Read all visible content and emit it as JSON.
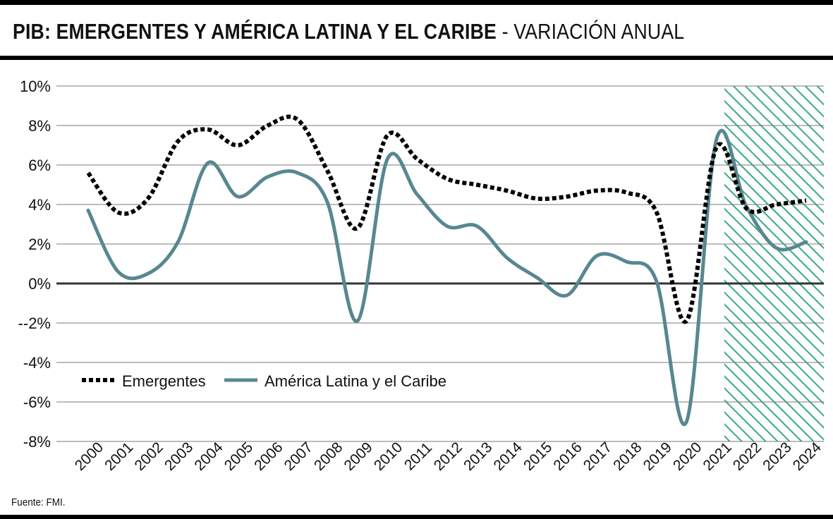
{
  "title": {
    "main": "PIB: EMERGENTES Y AMÉRICA LATINA Y EL CARIBE",
    "sub": " - VARIACIÓN ANUAL"
  },
  "source": "Fuente: FMI.",
  "colors": {
    "emergentes": "#000000",
    "america_latina": "#58878f",
    "projection_hatch": "#3aa98a",
    "grid": "#7a7a7a",
    "zero_line": "#333333"
  },
  "chart_data": {
    "type": "line",
    "x": [
      "2000",
      "2001",
      "2002",
      "2003",
      "2004",
      "2005",
      "2006",
      "2007",
      "2008",
      "2009",
      "2010",
      "2011",
      "2012",
      "2013",
      "2014",
      "2015",
      "2016",
      "2017",
      "2018",
      "2019",
      "2020",
      "2021",
      "2022",
      "2023",
      "2024"
    ],
    "series": [
      {
        "name": "Emergentes",
        "style": "dotted",
        "values": [
          5.6,
          3.6,
          4.3,
          7.2,
          7.8,
          7.0,
          8.0,
          8.3,
          5.7,
          2.8,
          7.5,
          6.3,
          5.3,
          5.0,
          4.7,
          4.3,
          4.4,
          4.7,
          4.6,
          3.6,
          -1.9,
          6.9,
          3.8,
          4.0,
          4.2
        ]
      },
      {
        "name": "América Latina y el Caribe",
        "style": "solid",
        "values": [
          3.7,
          0.6,
          0.5,
          2.1,
          6.1,
          4.4,
          5.4,
          5.6,
          4.1,
          -1.9,
          6.3,
          4.5,
          2.9,
          2.9,
          1.3,
          0.3,
          -0.6,
          1.4,
          1.1,
          0.1,
          -7.0,
          7.3,
          3.9,
          1.8,
          2.1
        ]
      }
    ],
    "y_ticks": [
      "10%",
      "8%",
      "6%",
      "4%",
      "2%",
      "0%",
      "--2%",
      "-4%",
      "-6%",
      "-8%"
    ],
    "ylim": [
      -8,
      10
    ],
    "grid": true,
    "projection_shaded_from": "2022",
    "legend_position": "lower-left"
  }
}
